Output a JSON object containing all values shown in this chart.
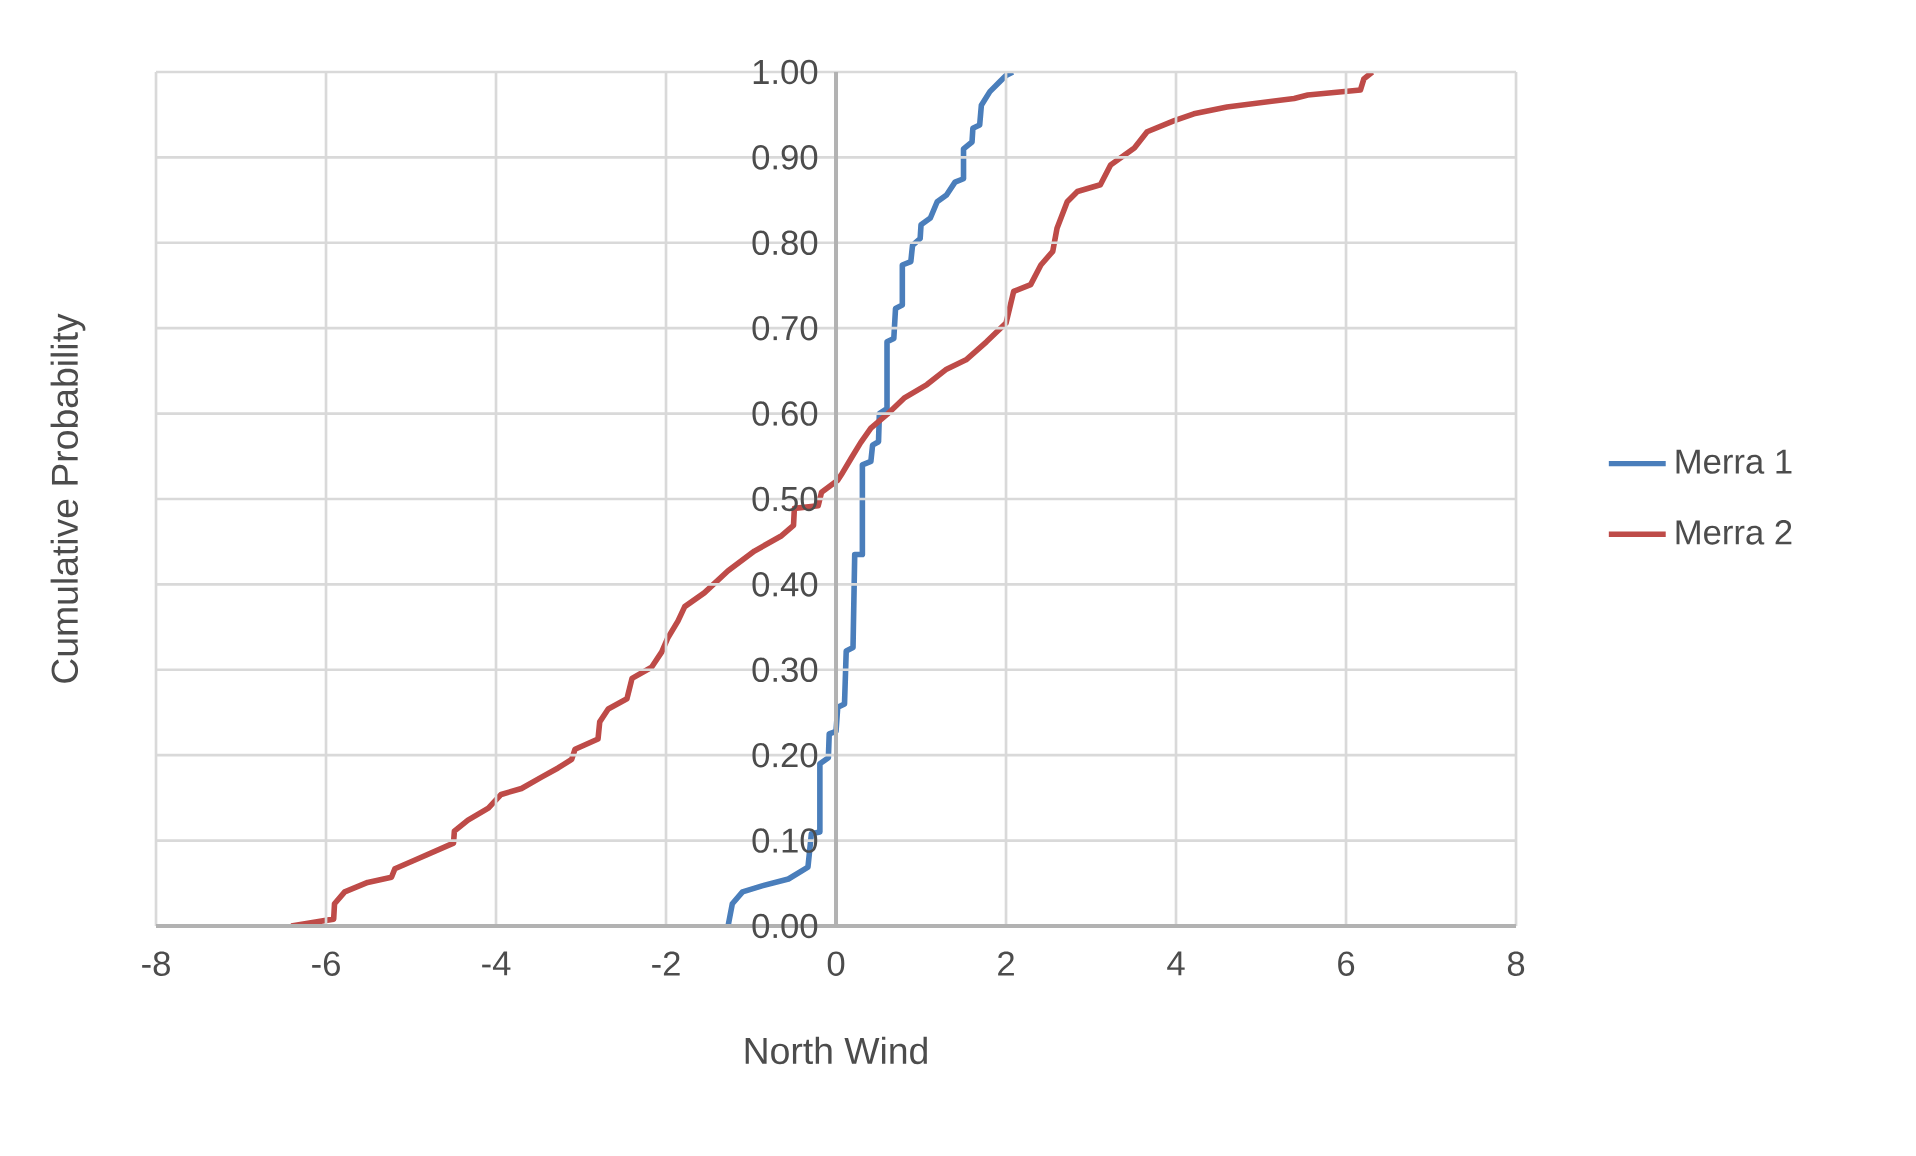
{
  "chart_data": {
    "type": "line",
    "xlabel": "North Wind",
    "ylabel": "Cumulative Probability",
    "xlim": [
      -8,
      8
    ],
    "xticks": [
      -8,
      -6,
      -4,
      -2,
      0,
      2,
      4,
      6,
      8
    ],
    "ylim": [
      0,
      1
    ],
    "yticks": [
      {
        "value": 0,
        "label": "0.00"
      },
      {
        "value": 0.1,
        "label": "0.10"
      },
      {
        "value": 0.2,
        "label": "0.20"
      },
      {
        "value": 0.3,
        "label": "0.30"
      },
      {
        "value": 0.4,
        "label": "0.40"
      },
      {
        "value": 0.5,
        "label": "0.50"
      },
      {
        "value": 0.6,
        "label": "0.60"
      },
      {
        "value": 0.7,
        "label": "0.70"
      },
      {
        "value": 0.8,
        "label": "0.80"
      },
      {
        "value": 0.9,
        "label": "0.90"
      },
      {
        "value": 1,
        "label": "1.00"
      }
    ],
    "grid": true,
    "legend": "right",
    "marker": "none",
    "line_style": "solid",
    "series": [
      {
        "name": "Merra 1",
        "color": "#4a7ebb",
        "x": [
          -1.27,
          -1.22,
          -1.1,
          -0.87,
          -0.56,
          -0.33,
          -0.29,
          -0.19,
          -0.19,
          -0.09,
          -0.08,
          0,
          0.02,
          0.1,
          0.12,
          0.2,
          0.22,
          0.31,
          0.31,
          0.41,
          0.43,
          0.5,
          0.51,
          0.6,
          0.6,
          0.68,
          0.7,
          0.78,
          0.78,
          0.88,
          0.9,
          0.99,
          1.0,
          1.11,
          1.19,
          1.3,
          1.4,
          1.5,
          1.5,
          1.6,
          1.61,
          1.69,
          1.71,
          1.81,
          1.92,
          2.0,
          2.08
        ],
        "values": [
          0,
          0.026,
          0.04,
          0.047,
          0.055,
          0.069,
          0.108,
          0.11,
          0.19,
          0.197,
          0.225,
          0.228,
          0.256,
          0.26,
          0.322,
          0.326,
          0.435,
          0.435,
          0.54,
          0.544,
          0.563,
          0.567,
          0.6,
          0.606,
          0.684,
          0.688,
          0.723,
          0.727,
          0.774,
          0.778,
          0.797,
          0.805,
          0.821,
          0.829,
          0.848,
          0.856,
          0.871,
          0.875,
          0.91,
          0.918,
          0.934,
          0.938,
          0.961,
          0.977,
          0.988,
          0.996,
          1.0
        ]
      },
      {
        "name": "Merra 2",
        "color": "#be4b48",
        "x": [
          -6.41,
          -5.91,
          -5.9,
          -5.78,
          -5.51,
          -5.23,
          -5.19,
          -4.96,
          -4.5,
          -4.49,
          -4.33,
          -4.09,
          -3.94,
          -3.7,
          -3.47,
          -3.27,
          -3.11,
          -3.07,
          -2.8,
          -2.78,
          -2.68,
          -2.46,
          -2.4,
          -2.17,
          -2.05,
          -1.98,
          -1.86,
          -1.78,
          -1.55,
          -1.27,
          -0.96,
          -0.64,
          -0.5,
          -0.49,
          -0.21,
          -0.17,
          0.02,
          0.06,
          0.18,
          0.29,
          0.41,
          0.6,
          0.8,
          1.07,
          1.3,
          1.53,
          1.77,
          2.0,
          2.09,
          2.29,
          2.41,
          2.55,
          2.6,
          2.72,
          2.84,
          3.11,
          3.23,
          3.51,
          3.66,
          3.98,
          4.21,
          4.6,
          5.39,
          5.55,
          6.17,
          6.21,
          6.31
        ],
        "values": [
          0,
          0.008,
          0.026,
          0.04,
          0.051,
          0.057,
          0.067,
          0.077,
          0.097,
          0.111,
          0.124,
          0.138,
          0.154,
          0.161,
          0.174,
          0.185,
          0.195,
          0.207,
          0.219,
          0.239,
          0.254,
          0.266,
          0.29,
          0.303,
          0.321,
          0.337,
          0.357,
          0.374,
          0.39,
          0.416,
          0.439,
          0.457,
          0.469,
          0.489,
          0.492,
          0.508,
          0.522,
          0.528,
          0.548,
          0.566,
          0.583,
          0.599,
          0.618,
          0.634,
          0.652,
          0.663,
          0.684,
          0.706,
          0.743,
          0.751,
          0.774,
          0.79,
          0.817,
          0.848,
          0.86,
          0.868,
          0.891,
          0.911,
          0.93,
          0.943,
          0.951,
          0.959,
          0.969,
          0.973,
          0.979,
          0.992,
          1.0
        ]
      }
    ]
  }
}
